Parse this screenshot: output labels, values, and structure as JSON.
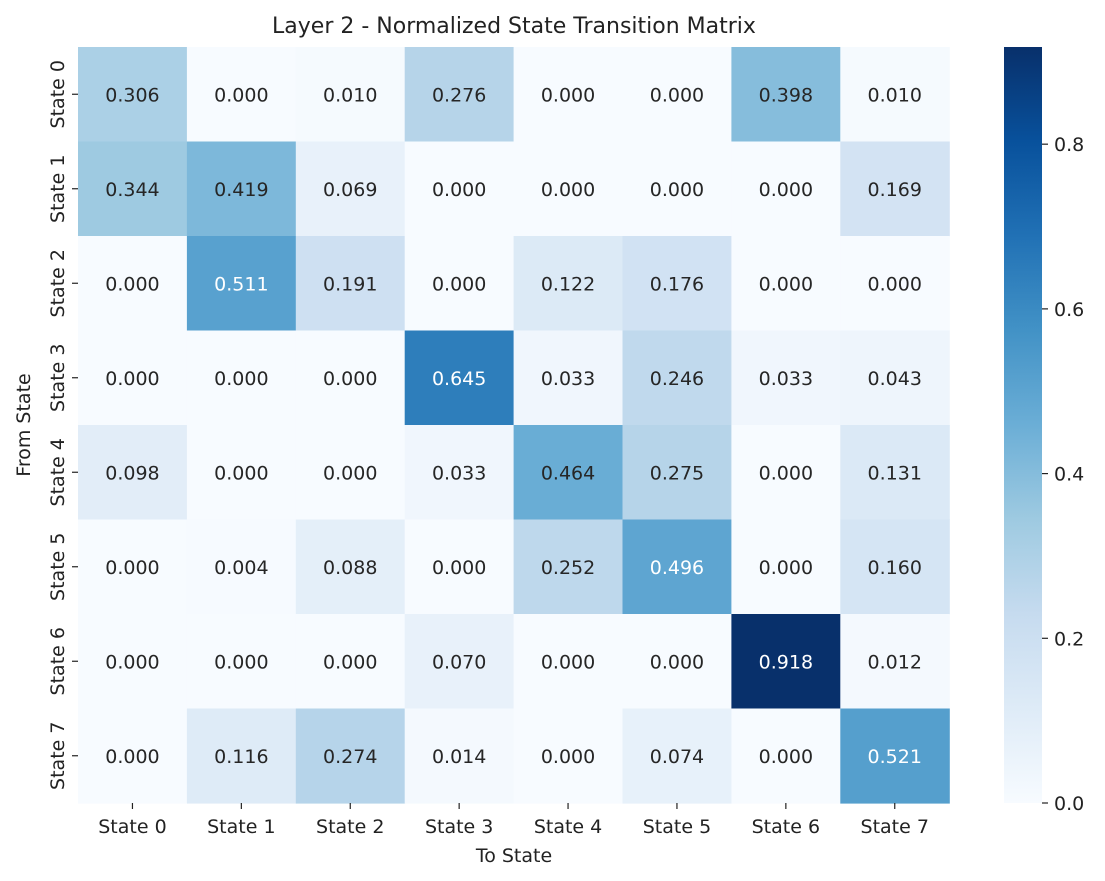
{
  "chart_data": {
    "type": "heatmap",
    "title": "Layer 2 - Normalized State Transition Matrix",
    "xlabel": "To State",
    "ylabel": "From State",
    "x_categories": [
      "State 0",
      "State 1",
      "State 2",
      "State 3",
      "State 4",
      "State 5",
      "State 6",
      "State 7"
    ],
    "y_categories": [
      "State 0",
      "State 1",
      "State 2",
      "State 3",
      "State 4",
      "State 5",
      "State 6",
      "State 7"
    ],
    "values": [
      [
        0.306,
        0.0,
        0.01,
        0.276,
        0.0,
        0.0,
        0.398,
        0.01
      ],
      [
        0.344,
        0.419,
        0.069,
        0.0,
        0.0,
        0.0,
        0.0,
        0.169
      ],
      [
        0.0,
        0.511,
        0.191,
        0.0,
        0.122,
        0.176,
        0.0,
        0.0
      ],
      [
        0.0,
        0.0,
        0.0,
        0.645,
        0.033,
        0.246,
        0.033,
        0.043
      ],
      [
        0.098,
        0.0,
        0.0,
        0.033,
        0.464,
        0.275,
        0.0,
        0.131
      ],
      [
        0.0,
        0.004,
        0.088,
        0.0,
        0.252,
        0.496,
        0.0,
        0.16
      ],
      [
        0.0,
        0.0,
        0.0,
        0.07,
        0.0,
        0.0,
        0.918,
        0.012
      ],
      [
        0.0,
        0.116,
        0.274,
        0.014,
        0.0,
        0.074,
        0.0,
        0.521
      ]
    ],
    "value_format_decimals": 3,
    "colormap": "Blues",
    "color_range": [
      0.0,
      0.918
    ],
    "colorbar_ticks": [
      "0.0",
      "0.2",
      "0.4",
      "0.6",
      "0.8"
    ],
    "colorbar_tick_values": [
      0.0,
      0.2,
      0.4,
      0.6,
      0.8
    ],
    "colorbar_stops": [
      "#f7fbff",
      "#deebf7",
      "#c6dbef",
      "#9ecae1",
      "#6baed6",
      "#4292c6",
      "#2171b5",
      "#08519c",
      "#08306b"
    ],
    "text_color_dark": "#262626",
    "text_color_light": "#ffffff",
    "grid": false,
    "legend": "colorbar-right"
  }
}
